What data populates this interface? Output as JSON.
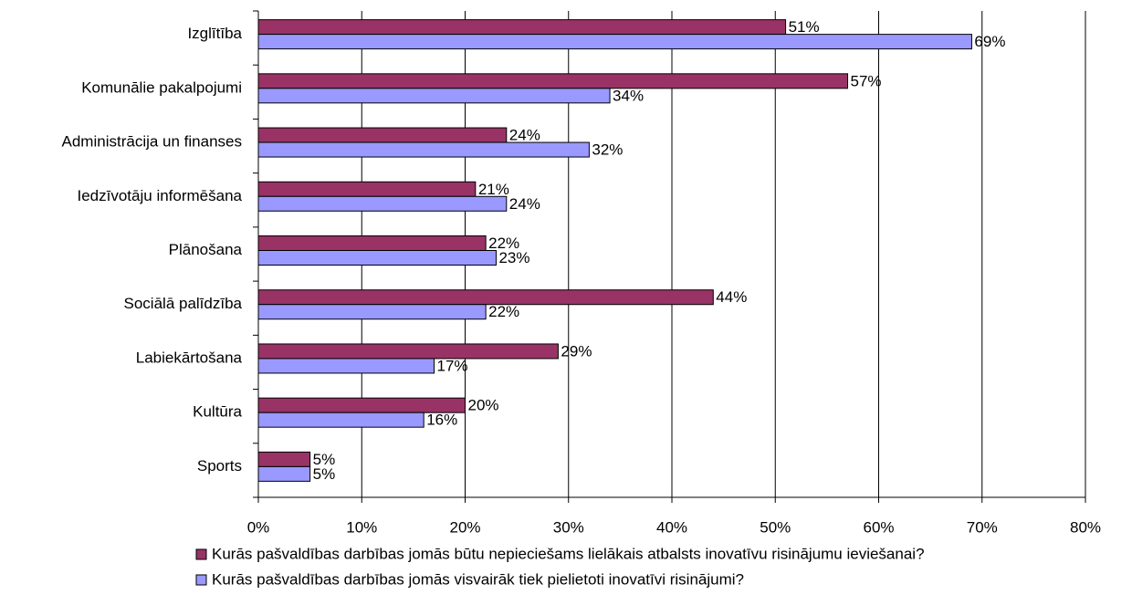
{
  "chart_data": {
    "type": "bar",
    "orientation": "horizontal",
    "categories": [
      "Izglītība",
      "Komunālie pakalpojumi",
      "Administrācija un finanses",
      "Iedzīvotāju informēšana",
      "Plānošana",
      "Sociālā palīdzība",
      "Labiekārtošana",
      "Kultūra",
      "Sports"
    ],
    "series": [
      {
        "name": "Kurās pašvaldības darbības jomās būtu nepieciešams lielākais atbalsts inovatīvu risinājumu ieviešanai?",
        "color": "#993366",
        "values": [
          51,
          57,
          24,
          21,
          22,
          44,
          29,
          20,
          5
        ],
        "value_labels": [
          "51%",
          "57%",
          "24%",
          "21%",
          "22%",
          "44%",
          "29%",
          "20%",
          "5%"
        ]
      },
      {
        "name": "Kurās pašvaldības darbības jomās visvairāk tiek pielietoti inovatīvi risinājumi?",
        "color": "#9999ff",
        "values": [
          69,
          34,
          32,
          24,
          23,
          22,
          17,
          16,
          5
        ],
        "value_labels": [
          "69%",
          "34%",
          "32%",
          "24%",
          "23%",
          "22%",
          "17%",
          "16%",
          "5%"
        ]
      }
    ],
    "xlim": [
      0,
      80
    ],
    "xticks": [
      {
        "value": 0,
        "label": "0%"
      },
      {
        "value": 10,
        "label": "10%"
      },
      {
        "value": 20,
        "label": "20%"
      },
      {
        "value": 30,
        "label": "30%"
      },
      {
        "value": 40,
        "label": "40%"
      },
      {
        "value": 50,
        "label": "50%"
      },
      {
        "value": 60,
        "label": "60%"
      },
      {
        "value": 70,
        "label": "70%"
      },
      {
        "value": 80,
        "label": "80%"
      }
    ],
    "grid": true,
    "legend": "bottom"
  }
}
